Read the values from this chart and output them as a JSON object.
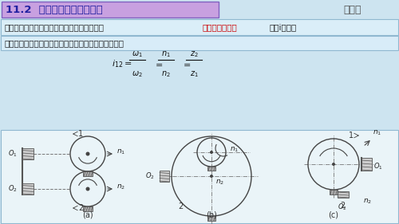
{
  "title": "11.2  定轴齿轮系传动比计算",
  "top_right_text": "齿轮系",
  "title_bg": "#c8a0e0",
  "title_border": "#7050b0",
  "main_bg": "#cde4f0",
  "text1_pre": "始端主动轮与末端从动轮的角速度比值，称为",
  "text1_red": "齿轮系的传动比",
  "text1_post": "，用i表示。",
  "text2": "一对对齿轮传动的传动比计算及主、从动轮转向关系：",
  "sub_a": "(a)",
  "sub_b": "(b)",
  "sub_c": "(c)",
  "gear_color": "#444444",
  "wall_color": "#555555",
  "axis_color": "#777777"
}
